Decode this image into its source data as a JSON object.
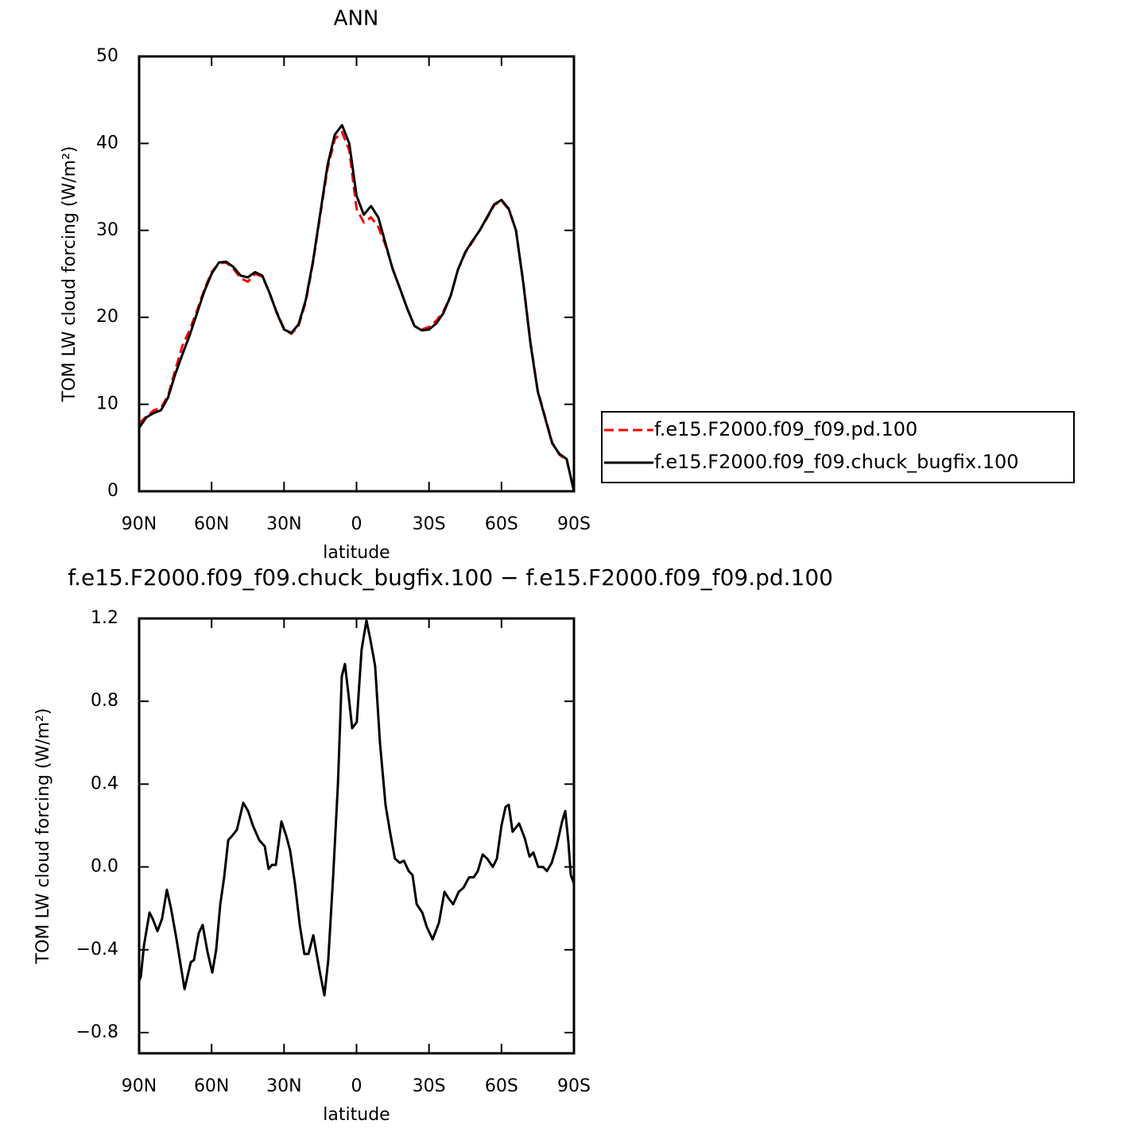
{
  "chart_data": [
    {
      "type": "line",
      "title": "ANN",
      "x_label": "latitude",
      "y_label": "TOM LW cloud forcing (W/m²)",
      "x": [
        90,
        87,
        84,
        81,
        78,
        75,
        72,
        69,
        66,
        63,
        60,
        57,
        54,
        51,
        48,
        45,
        42,
        39,
        36,
        33,
        30,
        27,
        24,
        21,
        18,
        15,
        12,
        9,
        6,
        3,
        0,
        -3,
        -6,
        -9,
        -12,
        -15,
        -18,
        -21,
        -24,
        -27,
        -30,
        -33,
        -36,
        -39,
        -42,
        -45,
        -48,
        -51,
        -54,
        -57,
        -60,
        -63,
        -66,
        -69,
        -72,
        -75,
        -78,
        -81,
        -84,
        -87,
        -90
      ],
      "series": [
        {
          "name": "f.e15.F2000.f09_f09.pd.100",
          "color": "#ff0000",
          "line_style": "dashed",
          "values": [
            7.8,
            8.6,
            9.3,
            9.6,
            11.0,
            14.0,
            16.8,
            18.6,
            20.8,
            23.2,
            25.2,
            26.2,
            26.3,
            25.6,
            24.5,
            24.1,
            25.0,
            24.7,
            22.8,
            20.6,
            18.7,
            18.1,
            19.0,
            21.8,
            26.3,
            31.8,
            37.1,
            40.5,
            41.3,
            39.2,
            32.5,
            30.9,
            31.5,
            30.4,
            28.3,
            25.6,
            23.3,
            21.0,
            19.0,
            18.6,
            18.9,
            19.6,
            20.7,
            22.5,
            25.5,
            27.4,
            28.7,
            30.0,
            31.4,
            32.9,
            33.4,
            32.4,
            30.0,
            24.1,
            17.1,
            11.6,
            8.6,
            5.6,
            4.2,
            3.6,
            0.0
          ]
        },
        {
          "name": "f.e15.F2000.f09_f09.chuck_bugfix.100",
          "color": "#000000",
          "line_style": "solid",
          "values": [
            7.3,
            8.5,
            9.0,
            9.3,
            10.8,
            13.5,
            15.8,
            18.0,
            20.5,
            23.0,
            25.0,
            26.3,
            26.4,
            25.8,
            24.8,
            24.6,
            25.2,
            24.8,
            22.8,
            20.5,
            18.6,
            18.2,
            19.2,
            22.0,
            26.5,
            32.0,
            37.5,
            41.0,
            42.1,
            40.0,
            34.0,
            31.8,
            32.8,
            31.5,
            28.5,
            25.5,
            23.3,
            21.0,
            19.0,
            18.5,
            18.6,
            19.3,
            20.5,
            22.5,
            25.5,
            27.5,
            28.8,
            30.0,
            31.5,
            33.0,
            33.5,
            32.5,
            30.0,
            24.0,
            17.0,
            11.5,
            8.5,
            5.5,
            4.3,
            3.7,
            0.0
          ]
        }
      ],
      "xlim": [
        90,
        -90
      ],
      "xticks": [
        {
          "value": 90,
          "label": "90N"
        },
        {
          "value": 60,
          "label": "60N"
        },
        {
          "value": 30,
          "label": "30N"
        },
        0,
        {
          "value": -30,
          "label": "30S"
        },
        {
          "value": -60,
          "label": "60S"
        },
        {
          "value": -90,
          "label": "90S"
        }
      ],
      "ylim": [
        0,
        50
      ],
      "yticks": [
        0,
        10,
        20,
        30,
        40,
        50
      ]
    },
    {
      "type": "line",
      "title": "f.e15.F2000.f09_f09.chuck_bugfix.100 − f.e15.F2000.f09_f09.pd.100",
      "x_label": "latitude",
      "y_label": "TOM LW cloud forcing (W/m²)",
      "x": [
        90,
        89.3,
        88,
        85.7,
        84.4,
        82.4,
        80.5,
        78.5,
        76.8,
        74.5,
        71.2,
        68.6,
        67.3,
        65.3,
        63.7,
        61.7,
        59.7,
        58.1,
        56.4,
        54.8,
        53.1,
        51.5,
        49.5,
        46.9,
        44.9,
        42.9,
        40.3,
        38.0,
        36.4,
        35.0,
        33.4,
        31.1,
        29.1,
        27.5,
        25.5,
        23.5,
        21.6,
        19.9,
        17.9,
        15.3,
        13.3,
        11.7,
        9.7,
        7.7,
        6.1,
        4.8,
        3.4,
        1.8,
        -0.1,
        -2.1,
        -4.1,
        -5.7,
        -7.7,
        -9.7,
        -12.0,
        -14.0,
        -15.9,
        -17.9,
        -19.6,
        -21.6,
        -23.2,
        -24.9,
        -27.2,
        -29.1,
        -31.5,
        -34.1,
        -36.4,
        -38.0,
        -40.0,
        -42.3,
        -44.3,
        -46.6,
        -48.5,
        -50.2,
        -52.2,
        -54.1,
        -56.4,
        -58.1,
        -60.0,
        -61.7,
        -63.0,
        -64.6,
        -67.3,
        -69.6,
        -71.6,
        -73.2,
        -75.2,
        -77.2,
        -78.8,
        -80.8,
        -82.8,
        -85.1,
        -86.4,
        -87.7,
        -88.7,
        -90
      ],
      "series": [
        {
          "color": "#000000",
          "line_style": "solid",
          "values": [
            -0.55,
            -0.53,
            -0.38,
            -0.22,
            -0.25,
            -0.31,
            -0.25,
            -0.11,
            -0.2,
            -0.35,
            -0.59,
            -0.46,
            -0.45,
            -0.32,
            -0.28,
            -0.41,
            -0.51,
            -0.4,
            -0.18,
            -0.05,
            0.13,
            0.15,
            0.18,
            0.31,
            0.27,
            0.2,
            0.13,
            0.1,
            -0.01,
            0.01,
            0.01,
            0.22,
            0.15,
            0.08,
            -0.08,
            -0.28,
            -0.42,
            -0.42,
            -0.33,
            -0.5,
            -0.62,
            -0.45,
            -0.05,
            0.4,
            0.92,
            0.98,
            0.84,
            0.67,
            0.7,
            1.05,
            1.19,
            1.1,
            0.97,
            0.6,
            0.3,
            0.16,
            0.04,
            0.02,
            0.03,
            -0.02,
            -0.04,
            -0.18,
            -0.22,
            -0.29,
            -0.35,
            -0.27,
            -0.12,
            -0.15,
            -0.18,
            -0.12,
            -0.1,
            -0.05,
            -0.05,
            -0.02,
            0.06,
            0.04,
            0.0,
            0.04,
            0.2,
            0.29,
            0.3,
            0.17,
            0.21,
            0.14,
            0.05,
            0.07,
            0.0,
            0.0,
            -0.02,
            0.02,
            0.1,
            0.22,
            0.27,
            0.12,
            -0.04,
            -0.08
          ]
        }
      ],
      "xlim": [
        90,
        -90
      ],
      "xticks": [
        {
          "value": 90,
          "label": "90N"
        },
        {
          "value": 60,
          "label": "60N"
        },
        {
          "value": 30,
          "label": "30N"
        },
        0,
        {
          "value": -30,
          "label": "30S"
        },
        {
          "value": -60,
          "label": "60S"
        },
        {
          "value": -90,
          "label": "90S"
        }
      ],
      "ylim": [
        -0.9,
        1.2
      ],
      "yticks": [
        {
          "value": -0.8,
          "label": "−0.8"
        },
        {
          "value": -0.4,
          "label": "−0.4"
        },
        {
          "value": 0,
          "label": "0.0"
        },
        0.4,
        0.8,
        1.2
      ]
    }
  ]
}
